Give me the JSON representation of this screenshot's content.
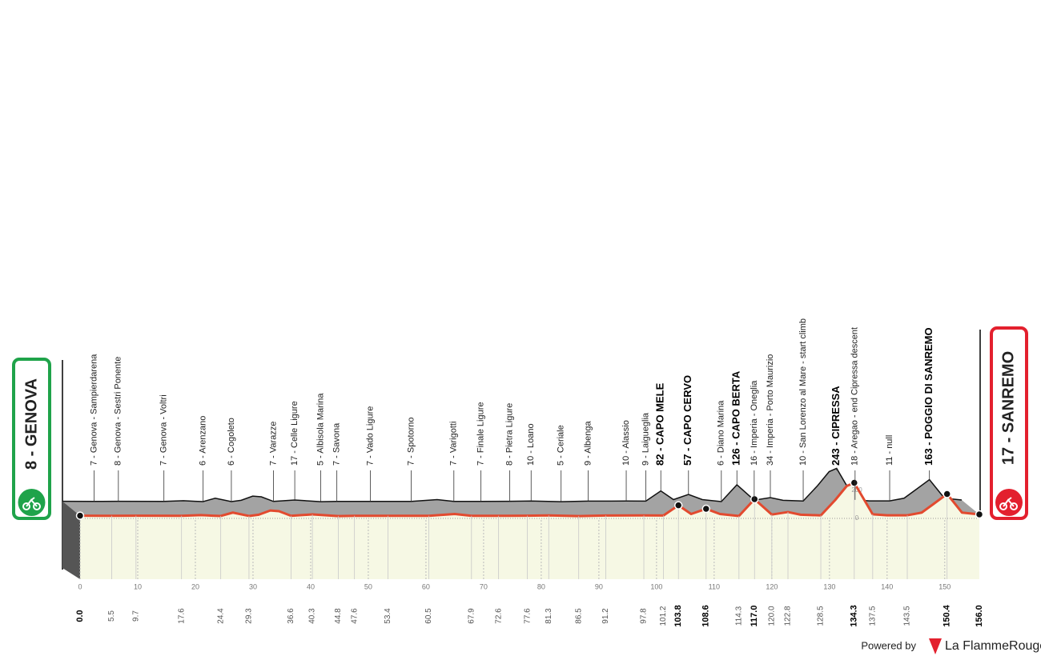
{
  "chart_data": {
    "type": "profile",
    "start": {
      "label": "8 - GENOVA",
      "km": {
        "value": 0,
        "label": "0.0"
      }
    },
    "finish": {
      "label": "17 - SANREMO",
      "km": {
        "value": 156,
        "label": "156.0"
      }
    },
    "waypoints": [
      {
        "km": 5.5,
        "label": "7 - Genova - Sampierdarena"
      },
      {
        "km": 9.7,
        "label": "8 - Genova - Sestri Ponente"
      },
      {
        "km": 17.6,
        "label": "7 - Genova - Voltri"
      },
      {
        "km": 24.4,
        "label": "6 - Arenzano"
      },
      {
        "km": 29.3,
        "label": "6 - Cogoleto"
      },
      {
        "km": 36.6,
        "label": "7 - Varazze"
      },
      {
        "km": 40.3,
        "label": "17 - Celle Ligure"
      },
      {
        "km": 44.8,
        "label": "5 - Albisola Marina"
      },
      {
        "km": 47.6,
        "label": "7 - Savona"
      },
      {
        "km": 53.4,
        "label": "7 - Vado Ligure"
      },
      {
        "km": 60.5,
        "label": "7 - Spotorno"
      },
      {
        "km": 67.9,
        "label": "7 - Varigotti"
      },
      {
        "km": 72.6,
        "label": "7 - Finale Ligure"
      },
      {
        "km": 77.6,
        "label": "8 - Pietra Ligure"
      },
      {
        "km": 81.3,
        "label": "10 - Loano"
      },
      {
        "km": 86.5,
        "label": "5 - Ceriale"
      },
      {
        "km": 91.2,
        "label": "9 - Albenga"
      },
      {
        "km": 97.8,
        "label": "10 - Alassio"
      },
      {
        "km": 101.2,
        "label": "9 - Laigueglia"
      },
      {
        "km": 103.8,
        "label": "82 - CAPO MELE",
        "climb": true
      },
      {
        "km": 108.6,
        "label": "57 - CAPO CERVO",
        "climb": true
      },
      {
        "km": 114.3,
        "label": "6 - Diano Marina"
      },
      {
        "km": {
          "value": 117,
          "label": "117.0"
        },
        "label": "126 - CAPO BERTA",
        "climb": true
      },
      {
        "km": {
          "value": 120,
          "label": "120.0"
        },
        "label": "16 - Imperia - Oneglia"
      },
      {
        "km": 122.8,
        "label": "34 - Imperia - Porto Maurizio"
      },
      {
        "km": 128.5,
        "label": "10 - San Lorenzo al Mare - start climb"
      },
      {
        "km": 134.3,
        "label": "243 - CIPRESSA",
        "climb": true
      },
      {
        "km": 137.5,
        "label": "18 - Aregao - end Cipressa descent"
      },
      {
        "km": 143.5,
        "label": "11 - null"
      },
      {
        "km": 150.4,
        "label": "163 - POGGIO DI SANREMO",
        "climb": true
      }
    ],
    "x": [
      0,
      5.5,
      9.7,
      17.6,
      21,
      23,
      24.4,
      26.5,
      29.3,
      31,
      33,
      34.5,
      36.6,
      40.3,
      44.8,
      47.6,
      53.4,
      60.5,
      65,
      67.9,
      72.6,
      77.6,
      81.3,
      86.5,
      91.2,
      97.8,
      101.2,
      103.8,
      106,
      108.6,
      111,
      114.3,
      117,
      120,
      122.8,
      125,
      128.5,
      131,
      133,
      134.3,
      137.5,
      140,
      143.5,
      146,
      148,
      150.4,
      153,
      156
    ],
    "values": [
      8,
      7,
      8,
      7,
      12,
      8,
      6,
      30,
      6,
      15,
      45,
      40,
      7,
      17,
      5,
      7,
      7,
      7,
      20,
      7,
      7,
      8,
      10,
      5,
      9,
      10,
      9,
      82,
      20,
      57,
      20,
      6,
      126,
      16,
      34,
      15,
      10,
      120,
      220,
      243,
      18,
      11,
      11,
      30,
      90,
      163,
      30,
      17
    ],
    "xlim": [
      0,
      156
    ],
    "xticks": [
      0,
      10,
      20,
      30,
      40,
      50,
      60,
      70,
      80,
      90,
      100,
      110,
      120,
      130,
      140,
      150
    ],
    "elevation_ticks": [
      0,
      200
    ],
    "colors": {
      "line": "#e24a2f",
      "face": "#f6f8e4",
      "shadow": "#a3a3a3",
      "start": "#1fa34a",
      "finish": "#e3202e"
    },
    "footer": {
      "powered": "Powered by",
      "brand": "La FlammeRouge"
    }
  }
}
